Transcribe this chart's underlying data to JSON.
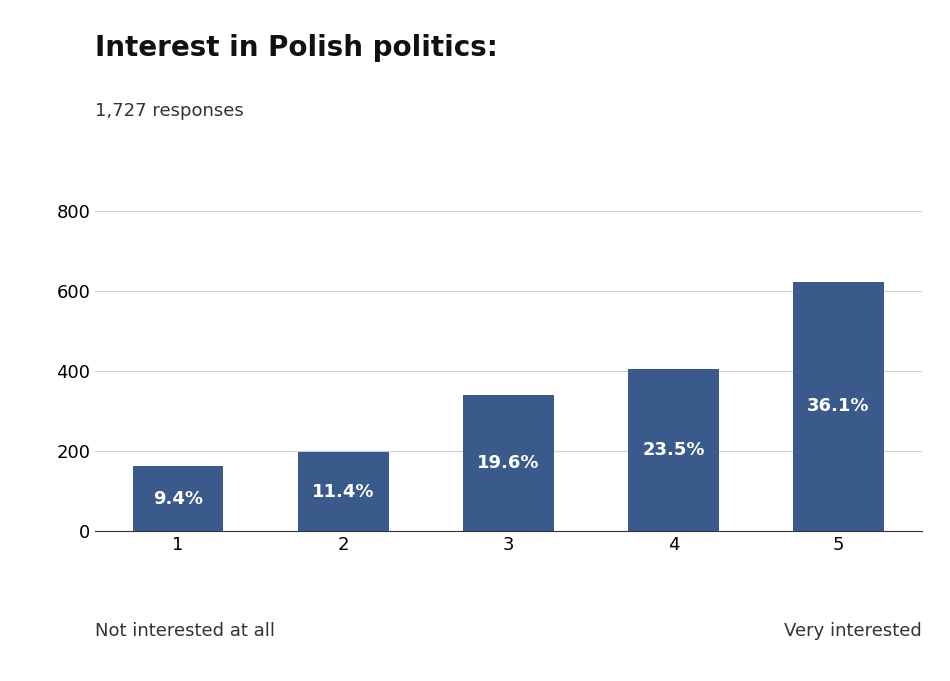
{
  "title": "Interest in Polish politics:",
  "subtitle": "1,727 responses",
  "categories": [
    1,
    2,
    3,
    4,
    5
  ],
  "values": [
    162,
    197,
    339,
    406,
    623
  ],
  "percentages": [
    "9.4%",
    "11.4%",
    "19.6%",
    "23.5%",
    "36.1%"
  ],
  "bar_color": "#3A5A8C",
  "xlabel_left": "Not interested at all",
  "xlabel_right": "Very interested",
  "ylim": [
    0,
    850
  ],
  "yticks": [
    0,
    200,
    400,
    600,
    800
  ],
  "title_fontsize": 20,
  "subtitle_fontsize": 13,
  "tick_fontsize": 13,
  "label_fontsize": 13,
  "pct_fontsize": 13,
  "background_color": "#ffffff",
  "grid_color": "#d0d0d0"
}
